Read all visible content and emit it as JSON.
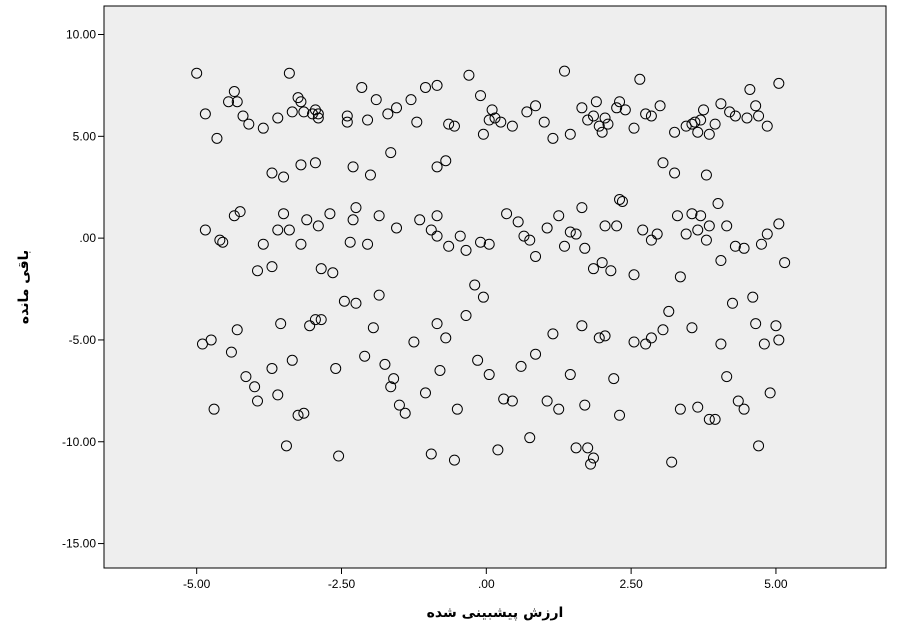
{
  "chart_data": {
    "type": "scatter",
    "xlabel": "ارزش پیشبینی شده",
    "ylabel": "باقی مانده",
    "xlim": [
      -6.6,
      6.9
    ],
    "ylim": [
      -16.2,
      11.4
    ],
    "x_ticks": [
      -5.0,
      -2.5,
      0.0,
      2.5,
      5.0
    ],
    "x_tick_labels": [
      "-5.00",
      "-2.50",
      ".00",
      "2.50",
      "5.00"
    ],
    "y_ticks": [
      10.0,
      5.0,
      0.0,
      -5.0,
      -10.0,
      -15.0
    ],
    "y_tick_labels": [
      "10.00",
      "5.00",
      ".00",
      "-5.00",
      "-10.00",
      "-15.00"
    ],
    "grid": false,
    "plot_background": "#eeeeee",
    "marker": "open-circle",
    "marker_color": "#000000",
    "points": [
      [
        -5.0,
        8.1
      ],
      [
        -4.85,
        6.1
      ],
      [
        -4.65,
        4.9
      ],
      [
        -4.45,
        6.7
      ],
      [
        -4.35,
        7.2
      ],
      [
        -4.3,
        6.7
      ],
      [
        -4.2,
        6.0
      ],
      [
        -4.1,
        5.6
      ],
      [
        -3.85,
        5.4
      ],
      [
        -3.6,
        5.9
      ],
      [
        -3.4,
        8.1
      ],
      [
        -3.35,
        6.2
      ],
      [
        -3.25,
        6.9
      ],
      [
        -3.2,
        6.7
      ],
      [
        -3.15,
        6.2
      ],
      [
        -3.0,
        6.1
      ],
      [
        -2.95,
        6.3
      ],
      [
        -2.9,
        5.9
      ],
      [
        -2.9,
        6.1
      ],
      [
        -2.4,
        5.7
      ],
      [
        -2.4,
        6.0
      ],
      [
        -2.15,
        7.4
      ],
      [
        -2.05,
        5.8
      ],
      [
        -1.9,
        6.8
      ],
      [
        -1.7,
        6.1
      ],
      [
        -1.55,
        6.4
      ],
      [
        -1.3,
        6.8
      ],
      [
        -1.2,
        5.7
      ],
      [
        -1.05,
        7.4
      ],
      [
        -0.85,
        7.5
      ],
      [
        -0.65,
        5.6
      ],
      [
        -0.55,
        5.5
      ],
      [
        -0.3,
        8.0
      ],
      [
        -0.1,
        7.0
      ],
      [
        -0.05,
        5.1
      ],
      [
        0.05,
        5.8
      ],
      [
        0.1,
        6.3
      ],
      [
        0.15,
        5.9
      ],
      [
        0.25,
        5.7
      ],
      [
        0.45,
        5.5
      ],
      [
        0.7,
        6.2
      ],
      [
        0.85,
        6.5
      ],
      [
        1.0,
        5.7
      ],
      [
        1.15,
        4.9
      ],
      [
        1.35,
        8.2
      ],
      [
        1.45,
        5.1
      ],
      [
        1.65,
        6.4
      ],
      [
        1.75,
        5.8
      ],
      [
        1.85,
        6.0
      ],
      [
        1.9,
        6.7
      ],
      [
        1.95,
        5.5
      ],
      [
        2.0,
        5.2
      ],
      [
        2.05,
        5.9
      ],
      [
        2.1,
        5.6
      ],
      [
        2.25,
        6.4
      ],
      [
        2.3,
        6.7
      ],
      [
        2.4,
        6.3
      ],
      [
        2.55,
        5.4
      ],
      [
        2.65,
        7.8
      ],
      [
        2.75,
        6.1
      ],
      [
        2.85,
        6.0
      ],
      [
        3.0,
        6.5
      ],
      [
        3.25,
        5.2
      ],
      [
        3.45,
        5.5
      ],
      [
        3.55,
        5.6
      ],
      [
        3.6,
        5.7
      ],
      [
        3.65,
        5.2
      ],
      [
        3.7,
        5.8
      ],
      [
        3.75,
        6.3
      ],
      [
        3.85,
        5.1
      ],
      [
        3.95,
        5.6
      ],
      [
        4.05,
        6.6
      ],
      [
        4.2,
        6.2
      ],
      [
        4.3,
        6.0
      ],
      [
        4.5,
        5.9
      ],
      [
        4.55,
        7.3
      ],
      [
        4.65,
        6.5
      ],
      [
        4.7,
        6.0
      ],
      [
        4.85,
        5.5
      ],
      [
        5.05,
        7.6
      ],
      [
        -3.7,
        3.2
      ],
      [
        -3.5,
        3.0
      ],
      [
        -3.2,
        3.6
      ],
      [
        -2.95,
        3.7
      ],
      [
        -2.3,
        3.5
      ],
      [
        -2.0,
        3.1
      ],
      [
        -1.65,
        4.2
      ],
      [
        -0.85,
        3.5
      ],
      [
        -0.7,
        3.8
      ],
      [
        3.05,
        3.7
      ],
      [
        3.25,
        3.2
      ],
      [
        3.8,
        3.1
      ],
      [
        -4.85,
        0.4
      ],
      [
        -4.6,
        -0.1
      ],
      [
        -4.55,
        -0.2
      ],
      [
        -4.35,
        1.1
      ],
      [
        -4.25,
        1.3
      ],
      [
        -3.95,
        -1.6
      ],
      [
        -3.85,
        -0.3
      ],
      [
        -3.7,
        -1.4
      ],
      [
        -3.6,
        0.4
      ],
      [
        -3.5,
        1.2
      ],
      [
        -3.4,
        0.4
      ],
      [
        -3.2,
        -0.3
      ],
      [
        -3.1,
        0.9
      ],
      [
        -2.9,
        0.6
      ],
      [
        -2.85,
        -1.5
      ],
      [
        -2.7,
        1.2
      ],
      [
        -2.65,
        -1.7
      ],
      [
        -2.35,
        -0.2
      ],
      [
        -2.3,
        0.9
      ],
      [
        -2.25,
        1.5
      ],
      [
        -2.05,
        -0.3
      ],
      [
        -1.85,
        1.1
      ],
      [
        -1.55,
        0.5
      ],
      [
        -1.15,
        0.9
      ],
      [
        -0.95,
        0.4
      ],
      [
        -0.85,
        1.1
      ],
      [
        -0.85,
        0.1
      ],
      [
        -0.65,
        -0.4
      ],
      [
        -0.45,
        0.1
      ],
      [
        -0.35,
        -0.6
      ],
      [
        -0.2,
        -2.3
      ],
      [
        -0.1,
        -0.2
      ],
      [
        0.05,
        -0.3
      ],
      [
        0.35,
        1.2
      ],
      [
        0.55,
        0.8
      ],
      [
        0.65,
        0.1
      ],
      [
        0.75,
        -0.1
      ],
      [
        0.85,
        -0.9
      ],
      [
        1.05,
        0.5
      ],
      [
        1.25,
        1.1
      ],
      [
        1.35,
        -0.4
      ],
      [
        1.45,
        0.3
      ],
      [
        1.55,
        0.2
      ],
      [
        1.65,
        1.5
      ],
      [
        1.7,
        -0.5
      ],
      [
        1.85,
        -1.5
      ],
      [
        2.0,
        -1.2
      ],
      [
        2.05,
        0.6
      ],
      [
        2.15,
        -1.6
      ],
      [
        2.25,
        0.6
      ],
      [
        2.3,
        1.9
      ],
      [
        2.35,
        1.8
      ],
      [
        2.55,
        -1.8
      ],
      [
        2.7,
        0.4
      ],
      [
        2.85,
        -0.1
      ],
      [
        2.95,
        0.2
      ],
      [
        3.3,
        1.1
      ],
      [
        3.35,
        -1.9
      ],
      [
        3.45,
        0.2
      ],
      [
        3.55,
        1.2
      ],
      [
        3.65,
        0.4
      ],
      [
        3.7,
        1.1
      ],
      [
        3.8,
        -0.1
      ],
      [
        3.85,
        0.6
      ],
      [
        4.0,
        1.7
      ],
      [
        4.05,
        -1.1
      ],
      [
        4.15,
        0.6
      ],
      [
        4.3,
        -0.4
      ],
      [
        4.45,
        -0.5
      ],
      [
        4.75,
        -0.3
      ],
      [
        4.85,
        0.2
      ],
      [
        5.05,
        0.7
      ],
      [
        5.15,
        -1.2
      ],
      [
        -4.9,
        -5.2
      ],
      [
        -4.75,
        -5.0
      ],
      [
        -4.7,
        -8.4
      ],
      [
        -4.4,
        -5.6
      ],
      [
        -4.3,
        -4.5
      ],
      [
        -4.15,
        -6.8
      ],
      [
        -4.0,
        -7.3
      ],
      [
        -3.95,
        -8.0
      ],
      [
        -3.7,
        -6.4
      ],
      [
        -3.6,
        -7.7
      ],
      [
        -3.55,
        -4.2
      ],
      [
        -3.45,
        -10.2
      ],
      [
        -3.35,
        -6.0
      ],
      [
        -3.25,
        -8.7
      ],
      [
        -3.15,
        -8.6
      ],
      [
        -3.05,
        -4.3
      ],
      [
        -2.95,
        -4.0
      ],
      [
        -2.85,
        -4.0
      ],
      [
        -2.6,
        -6.4
      ],
      [
        -2.55,
        -10.7
      ],
      [
        -2.45,
        -3.1
      ],
      [
        -2.25,
        -3.2
      ],
      [
        -2.1,
        -5.8
      ],
      [
        -1.95,
        -4.4
      ],
      [
        -1.85,
        -2.8
      ],
      [
        -1.75,
        -6.2
      ],
      [
        -1.65,
        -7.3
      ],
      [
        -1.6,
        -6.9
      ],
      [
        -1.5,
        -8.2
      ],
      [
        -1.4,
        -8.6
      ],
      [
        -1.25,
        -5.1
      ],
      [
        -1.05,
        -7.6
      ],
      [
        -0.95,
        -10.6
      ],
      [
        -0.85,
        -4.2
      ],
      [
        -0.8,
        -6.5
      ],
      [
        -0.7,
        -4.9
      ],
      [
        -0.55,
        -10.9
      ],
      [
        -0.5,
        -8.4
      ],
      [
        -0.35,
        -3.8
      ],
      [
        -0.15,
        -6.0
      ],
      [
        -0.05,
        -2.9
      ],
      [
        0.05,
        -6.7
      ],
      [
        0.2,
        -10.4
      ],
      [
        0.3,
        -7.9
      ],
      [
        0.45,
        -8.0
      ],
      [
        0.6,
        -6.3
      ],
      [
        0.75,
        -9.8
      ],
      [
        0.85,
        -5.7
      ],
      [
        1.05,
        -8.0
      ],
      [
        1.15,
        -4.7
      ],
      [
        1.25,
        -8.4
      ],
      [
        1.45,
        -6.7
      ],
      [
        1.55,
        -10.3
      ],
      [
        1.65,
        -4.3
      ],
      [
        1.7,
        -8.2
      ],
      [
        1.75,
        -10.3
      ],
      [
        1.8,
        -11.1
      ],
      [
        1.85,
        -10.8
      ],
      [
        1.95,
        -4.9
      ],
      [
        2.05,
        -4.8
      ],
      [
        2.2,
        -6.9
      ],
      [
        2.3,
        -8.7
      ],
      [
        2.55,
        -5.1
      ],
      [
        2.75,
        -5.2
      ],
      [
        2.85,
        -4.9
      ],
      [
        3.05,
        -4.5
      ],
      [
        3.15,
        -3.6
      ],
      [
        3.2,
        -11.0
      ],
      [
        3.35,
        -8.4
      ],
      [
        3.55,
        -4.4
      ],
      [
        3.65,
        -8.3
      ],
      [
        3.85,
        -8.9
      ],
      [
        3.95,
        -8.9
      ],
      [
        4.05,
        -5.2
      ],
      [
        4.15,
        -6.8
      ],
      [
        4.25,
        -3.2
      ],
      [
        4.35,
        -8.0
      ],
      [
        4.45,
        -8.4
      ],
      [
        4.6,
        -2.9
      ],
      [
        4.65,
        -4.2
      ],
      [
        4.7,
        -10.2
      ],
      [
        4.8,
        -5.2
      ],
      [
        4.9,
        -7.6
      ],
      [
        5.0,
        -4.3
      ],
      [
        5.05,
        -5.0
      ]
    ]
  }
}
